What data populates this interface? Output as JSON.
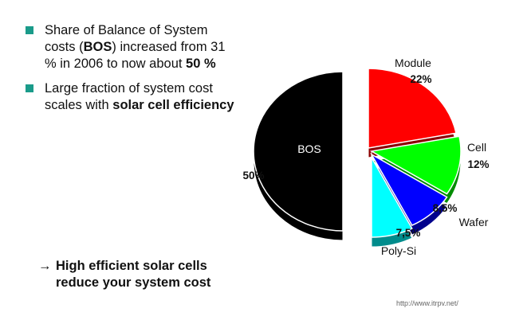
{
  "bullets": [
    {
      "parts": [
        {
          "text": "Share of Balance of System costs (",
          "bold": false
        },
        {
          "text": "BOS",
          "bold": true
        },
        {
          "text": ") increased from 31 % in 2006 to now about ",
          "bold": false
        },
        {
          "text": "50 %",
          "bold": true
        }
      ]
    },
    {
      "parts": [
        {
          "text": "Large fraction of system cost scales with ",
          "bold": false
        },
        {
          "text": "solar cell efficiency",
          "bold": true
        }
      ]
    }
  ],
  "conclusion": {
    "arrow": "→",
    "line1": "High efficient solar cells",
    "line2": "reduce your system cost"
  },
  "source": "http://www.itrpv.net/",
  "chart_data": {
    "type": "pie",
    "slices": [
      {
        "label": "BOS",
        "value_label": "50%",
        "value": 50,
        "color": "#000000"
      },
      {
        "label": "Module",
        "value_label": "22%",
        "value": 22,
        "color": "#ff0000"
      },
      {
        "label": "Cell",
        "value_label": "12%",
        "value": 12,
        "color": "#00ff00"
      },
      {
        "label": "Wafer",
        "value_label": "8,5%",
        "value": 8.5,
        "color": "#0000ff"
      },
      {
        "label": "Poly-Si",
        "value_label": "7,5%",
        "value": 7.5,
        "color": "#00ffff"
      }
    ]
  }
}
